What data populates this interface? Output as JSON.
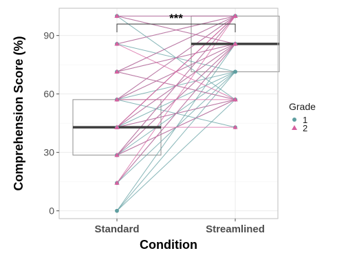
{
  "chart_data": {
    "type": "box-paired-line",
    "xlabel": "Condition",
    "ylabel": "Comprehension Score (%)",
    "categories": [
      "Standard",
      "Streamlined"
    ],
    "ylim": [
      -4,
      104
    ],
    "yticks": [
      0,
      30,
      60,
      90
    ],
    "grid": true,
    "significance": "***",
    "legend": {
      "title": "Grade",
      "position": "right",
      "entries": [
        {
          "label": "1",
          "color": "#5f9ea0",
          "shape": "circle"
        },
        {
          "label": "2",
          "color": "#d6609f",
          "shape": "triangle"
        }
      ]
    },
    "boxes": [
      {
        "category": "Standard",
        "q1": 28.6,
        "median": 42.9,
        "q3": 57.1
      },
      {
        "category": "Streamlined",
        "q1": 71.4,
        "median": 85.7,
        "q3": 100
      }
    ],
    "series": [
      {
        "name": "1",
        "color": "#5f9ea0",
        "pairs": [
          [
            0,
            57.1
          ],
          [
            0,
            71.4
          ],
          [
            0,
            85.7
          ],
          [
            14.3,
            71.4
          ],
          [
            14.3,
            85.7
          ],
          [
            28.6,
            57.1
          ],
          [
            28.6,
            85.7
          ],
          [
            28.6,
            100
          ],
          [
            28.6,
            71.4
          ],
          [
            42.9,
            85.7
          ],
          [
            42.9,
            100
          ],
          [
            42.9,
            71.4
          ],
          [
            42.9,
            57.1
          ],
          [
            57.1,
            100
          ],
          [
            57.1,
            85.7
          ],
          [
            57.1,
            71.4
          ],
          [
            57.1,
            42.9
          ],
          [
            71.4,
            100
          ],
          [
            71.4,
            85.7
          ],
          [
            71.4,
            57.1
          ],
          [
            85.7,
            100
          ],
          [
            85.7,
            71.4
          ],
          [
            100,
            85.7
          ],
          [
            100,
            57.1
          ],
          [
            100,
            100
          ]
        ]
      },
      {
        "name": "2",
        "color": "#d6609f",
        "pairs": [
          [
            14.3,
            85.7
          ],
          [
            14.3,
            100
          ],
          [
            28.6,
            100
          ],
          [
            28.6,
            85.7
          ],
          [
            28.6,
            57.1
          ],
          [
            42.9,
            100
          ],
          [
            42.9,
            85.7
          ],
          [
            42.9,
            57.1
          ],
          [
            42.9,
            42.9
          ],
          [
            42.9,
            100
          ],
          [
            57.1,
            100
          ],
          [
            57.1,
            85.7
          ],
          [
            57.1,
            57.1
          ],
          [
            71.4,
            100
          ],
          [
            71.4,
            85.7
          ],
          [
            71.4,
            57.1
          ],
          [
            85.7,
            100
          ],
          [
            85.7,
            57.1
          ],
          [
            100,
            100
          ],
          [
            100,
            85.7
          ]
        ]
      }
    ]
  }
}
